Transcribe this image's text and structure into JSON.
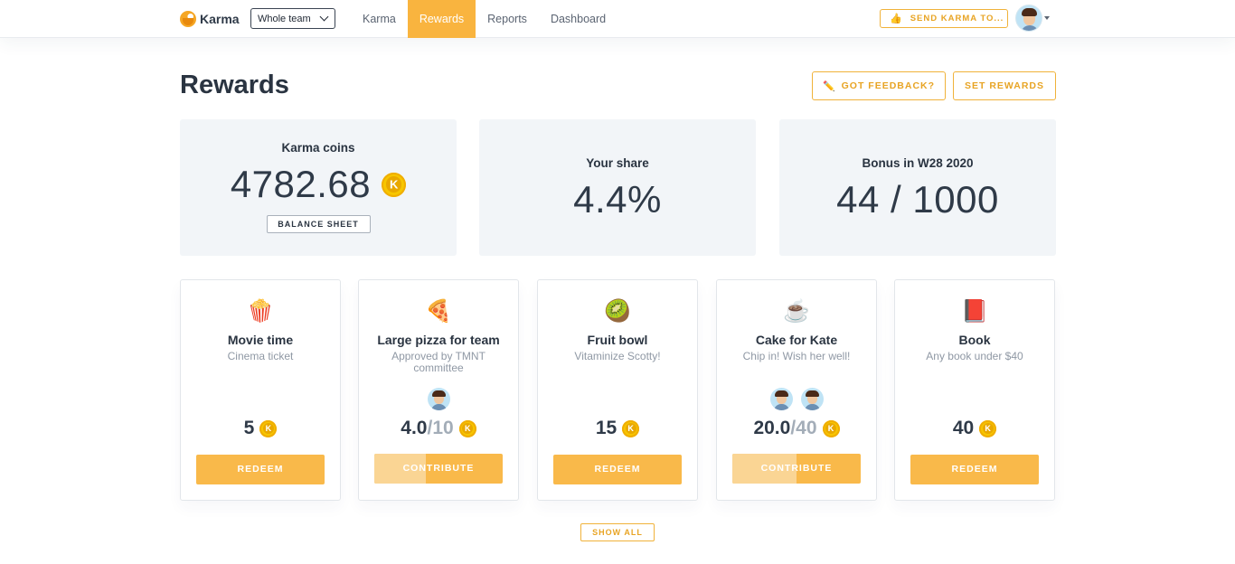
{
  "topbar": {
    "logo_text": "Karma",
    "team_select": "Whole team",
    "nav": [
      {
        "label": "Karma",
        "active": false
      },
      {
        "label": "Rewards",
        "active": true
      },
      {
        "label": "Reports",
        "active": false
      },
      {
        "label": "Dashboard",
        "active": false
      }
    ],
    "send_karma": "SEND KARMA TO...",
    "send_icon": "thumbs-up-icon"
  },
  "header": {
    "title": "Rewards",
    "feedback": "GOT FEEDBACK?",
    "set_rewards": "SET REWARDS"
  },
  "stats": {
    "coins": {
      "label": "Karma coins",
      "value": "4782.68",
      "button": "BALANCE SHEET"
    },
    "share": {
      "label": "Your share",
      "value": "4.4%"
    },
    "bonus": {
      "label": "Bonus in W28 2020",
      "value": "44 / 1000"
    }
  },
  "coin_symbol": "K",
  "rewards": [
    {
      "emoji": "🍿",
      "icon": "popcorn-icon",
      "name": "Movie time",
      "desc": "Cinema ticket",
      "price": "5",
      "goal": "",
      "contributors": 0,
      "progress": 0,
      "action": "REDEEM"
    },
    {
      "emoji": "🍕",
      "icon": "pizza-icon",
      "name": "Large pizza for team",
      "desc": "Approved by TMNT committee",
      "price": "4.0",
      "goal": "/10",
      "contributors": 1,
      "progress": 0.4,
      "action": "CONTRIBUTE"
    },
    {
      "emoji": "🥝",
      "icon": "kiwi-icon",
      "name": "Fruit bowl",
      "desc": "Vitaminize Scotty!",
      "price": "15",
      "goal": "",
      "contributors": 0,
      "progress": 0,
      "action": "REDEEM"
    },
    {
      "emoji": "☕",
      "icon": "coffee-icon",
      "name": "Cake for Kate",
      "desc": "Chip in! Wish her well!",
      "price": "20.0",
      "goal": "/40",
      "contributors": 2,
      "progress": 0.5,
      "action": "CONTRIBUTE"
    },
    {
      "emoji": "📕",
      "icon": "book-icon",
      "name": "Book",
      "desc": "Any book under $40",
      "price": "40",
      "goal": "",
      "contributors": 0,
      "progress": 0,
      "action": "REDEEM"
    }
  ],
  "show_all": "SHOW ALL",
  "colors": {
    "accent": "#f9b43f",
    "coin": "#f7c600",
    "card_bg": "#f2f5f8"
  }
}
